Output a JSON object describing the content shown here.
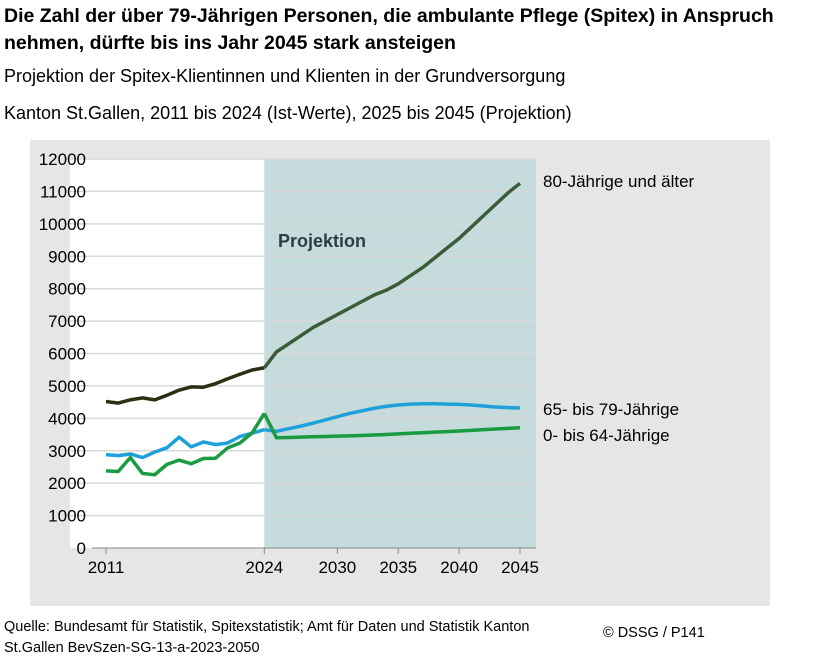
{
  "title": "Die Zahl der über 79-Jährigen Personen, die ambulante Pflege (Spitex) in Anspruch nehmen, dürfte bis ins Jahr 2045 stark ansteigen",
  "subtitle1": "Projektion der Spitex-Klientinnen und Klienten in der Grundversorgung",
  "subtitle2": "Kanton St.Gallen, 2011 bis 2024 (Ist-Werte), 2025 bis 2045 (Projektion)",
  "source": "Quelle: Bundesamt für Statistik, Spitexstatistik; Amt für Daten und Statistik Kanton St.Gallen BevSzen-SG-13-a-2023-2050",
  "copyright": "© DSSG / P141",
  "chart_data": {
    "type": "line",
    "annotation": "Projektion",
    "projection_start": 2024,
    "projection_end": 2045,
    "projection_color": "#c6dcdc",
    "ylim": [
      0,
      12000
    ],
    "yticks": [
      0,
      1000,
      2000,
      3000,
      4000,
      5000,
      6000,
      7000,
      8000,
      9000,
      10000,
      11000,
      12000
    ],
    "xlim": [
      2011,
      2045
    ],
    "xticks": [
      2011,
      2024,
      2030,
      2035,
      2040,
      2045
    ],
    "grid": true,
    "x": [
      2011,
      2012,
      2013,
      2014,
      2015,
      2016,
      2017,
      2018,
      2019,
      2020,
      2021,
      2022,
      2023,
      2024,
      2025,
      2026,
      2027,
      2028,
      2029,
      2030,
      2031,
      2032,
      2033,
      2034,
      2035,
      2036,
      2037,
      2038,
      2039,
      2040,
      2041,
      2042,
      2043,
      2044,
      2045
    ],
    "series": [
      {
        "name": "80-Jährige und älter",
        "color": "#2e2e12",
        "projection_color": "#3b5c38",
        "values": [
          4520,
          4470,
          4570,
          4630,
          4570,
          4710,
          4870,
          4970,
          4960,
          5070,
          5220,
          5360,
          5490,
          5560,
          6050,
          6300,
          6550,
          6800,
          7000,
          7200,
          7400,
          7600,
          7800,
          7950,
          8150,
          8400,
          8650,
          8950,
          9250,
          9550,
          9900,
          10250,
          10600,
          10950,
          11250
        ]
      },
      {
        "name": "65- bis 79-Jährige",
        "color": "#1ea0da",
        "projection_color": "#1ea0da",
        "values": [
          2880,
          2850,
          2900,
          2790,
          2960,
          3090,
          3420,
          3120,
          3270,
          3190,
          3240,
          3440,
          3540,
          3650,
          3600,
          3680,
          3760,
          3850,
          3950,
          4050,
          4150,
          4230,
          4310,
          4370,
          4410,
          4440,
          4450,
          4450,
          4440,
          4430,
          4410,
          4380,
          4350,
          4330,
          4320
        ]
      },
      {
        "name": "0- bis 64-Jährige",
        "color": "#1a9a41",
        "projection_color": "#1a9a41",
        "values": [
          2380,
          2360,
          2790,
          2300,
          2260,
          2580,
          2710,
          2600,
          2760,
          2770,
          3090,
          3240,
          3550,
          4150,
          3400,
          3410,
          3420,
          3430,
          3440,
          3450,
          3460,
          3470,
          3485,
          3500,
          3520,
          3540,
          3555,
          3575,
          3590,
          3610,
          3630,
          3650,
          3670,
          3690,
          3710
        ]
      }
    ]
  }
}
